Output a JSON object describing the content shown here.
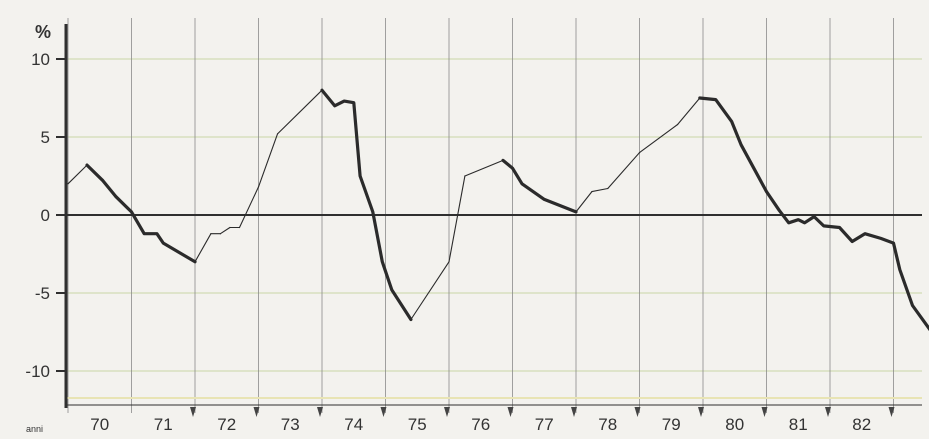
{
  "chart_data": {
    "type": "line",
    "unit_label": "%",
    "x_axis_label": "anni",
    "ylim": [
      -12,
      10.5
    ],
    "yticks": [
      10,
      5,
      0,
      -5,
      -10
    ],
    "ytick_labels": [
      "10",
      "5",
      "0",
      "-5",
      "-10"
    ],
    "grid": true,
    "x_tick_labels": [
      "70",
      "71",
      "72",
      "73",
      "74",
      "75",
      "76",
      "77",
      "78",
      "79",
      "80",
      "81",
      "82"
    ],
    "x_tick_positions": [
      70.5,
      71.5,
      72.5,
      73.5,
      74.5,
      75.5,
      76.5,
      77.5,
      78.5,
      79.5,
      80.5,
      81.5,
      82.5
    ],
    "xlim": [
      70.0,
      83.0
    ],
    "series": [
      {
        "values": [
          [
            70.0,
            2.0
          ],
          [
            70.3,
            3.2
          ],
          [
            70.55,
            2.2
          ],
          [
            70.75,
            1.2
          ],
          [
            71.0,
            0.2
          ],
          [
            71.2,
            -1.2
          ],
          [
            71.4,
            -1.2
          ],
          [
            71.5,
            -1.8
          ],
          [
            72.0,
            -3.0
          ],
          [
            72.25,
            -1.2
          ],
          [
            72.4,
            -1.2
          ],
          [
            72.55,
            -0.8
          ],
          [
            72.7,
            -0.8
          ],
          [
            73.0,
            1.8
          ],
          [
            73.3,
            5.2
          ],
          [
            74.0,
            8.0
          ],
          [
            74.2,
            7.0
          ],
          [
            74.35,
            7.3
          ],
          [
            74.5,
            7.2
          ],
          [
            74.6,
            2.5
          ],
          [
            74.8,
            0.2
          ],
          [
            74.95,
            -3.0
          ],
          [
            75.1,
            -4.8
          ],
          [
            75.4,
            -6.7
          ],
          [
            76.0,
            -3.0
          ],
          [
            76.25,
            2.5
          ],
          [
            76.85,
            3.5
          ],
          [
            77.0,
            3.0
          ],
          [
            77.15,
            2.0
          ],
          [
            77.5,
            1.0
          ],
          [
            78.0,
            0.2
          ],
          [
            78.25,
            1.5
          ],
          [
            78.5,
            1.7
          ],
          [
            79.0,
            4.0
          ],
          [
            79.6,
            5.8
          ],
          [
            79.95,
            7.5
          ],
          [
            80.2,
            7.4
          ],
          [
            80.45,
            6.0
          ],
          [
            80.6,
            4.5
          ],
          [
            80.8,
            3.0
          ],
          [
            81.0,
            1.5
          ],
          [
            81.2,
            0.3
          ],
          [
            81.35,
            -0.5
          ],
          [
            81.5,
            -0.3
          ],
          [
            81.6,
            -0.5
          ],
          [
            81.75,
            -0.1
          ],
          [
            81.9,
            -0.7
          ],
          [
            82.15,
            -0.8
          ],
          [
            82.35,
            -1.7
          ],
          [
            82.55,
            -1.2
          ],
          [
            82.8,
            -1.5
          ],
          [
            83.0,
            -1.8
          ],
          [
            83.1,
            -3.5
          ],
          [
            83.3,
            -5.8
          ],
          [
            83.6,
            -7.5
          ]
        ],
        "thick_segments": [
          [
            70.3,
            72.0
          ],
          [
            74.0,
            75.4
          ],
          [
            76.85,
            78.0
          ],
          [
            79.95,
            83.6
          ]
        ]
      }
    ]
  },
  "colors": {
    "line": "#2b2b2b",
    "axis": "#2f2f2f",
    "grid_vertical": "#8a8a8a",
    "grid_horizontal": "#c9d6a6",
    "grid_band": "#e8e4b4",
    "tick_marker": "#444444"
  }
}
